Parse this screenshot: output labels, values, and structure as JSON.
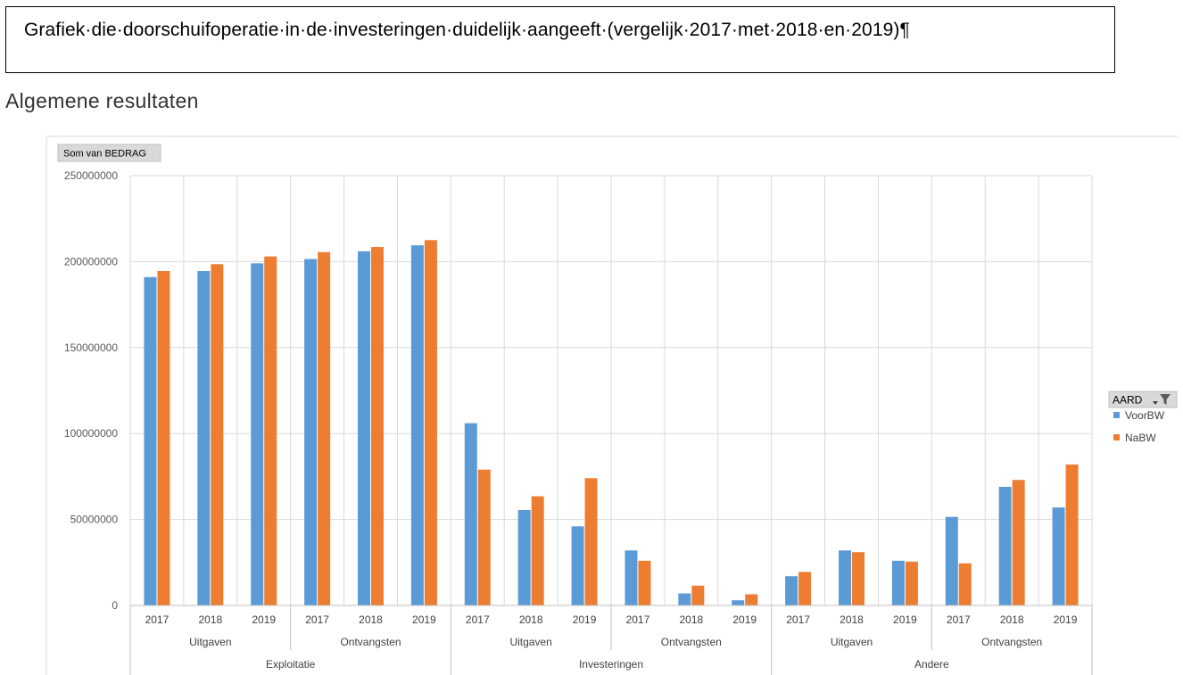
{
  "caption": {
    "text": "Grafiek·die·doorschuifoperatie·in·de·investeringen·duidelijk·aangeeft·(vergelijk·2017·met·2018·en·2019)¶"
  },
  "section_title": "Algemene resultaten",
  "colors": {
    "VoorBW": "#5b9bd5",
    "NaBW": "#ed7d31",
    "grid": "#d9d9d9",
    "axis_text": "#595959",
    "field_button_bg": "#d9d9d9"
  },
  "chart_data": {
    "type": "bar",
    "value_field_label": "Som van BEDRAG",
    "ylim": [
      0,
      250000000
    ],
    "yticks": [
      0,
      50000000,
      100000000,
      150000000,
      200000000,
      250000000
    ],
    "ytick_labels": [
      "0",
      "50000000",
      "100000000",
      "150000000",
      "200000000",
      "250000000"
    ],
    "grid": true,
    "legend": {
      "title": "AARD",
      "placement": "right"
    },
    "category_levels": {
      "year": [
        "2017",
        "2018",
        "2019",
        "2017",
        "2018",
        "2019",
        "2017",
        "2018",
        "2019",
        "2017",
        "2018",
        "2019",
        "2017",
        "2018",
        "2019",
        "2017",
        "2018",
        "2019"
      ],
      "sub": [
        "Uitgaven",
        "Ontvangsten",
        "Uitgaven",
        "Ontvangsten",
        "Uitgaven",
        "Ontvangsten"
      ],
      "group": [
        "Exploitatie",
        "Investeringen",
        "Andere"
      ]
    },
    "series": [
      {
        "name": "VoorBW",
        "values": [
          191000000,
          194500000,
          199000000,
          201500000,
          206000000,
          209500000,
          106000000,
          55500000,
          46000000,
          32000000,
          7000000,
          3000000,
          17000000,
          32000000,
          26000000,
          51500000,
          69000000,
          57000000
        ]
      },
      {
        "name": "NaBW",
        "values": [
          194500000,
          198500000,
          203000000,
          205500000,
          208500000,
          212500000,
          79000000,
          63500000,
          74000000,
          26000000,
          11500000,
          6500000,
          19500000,
          31000000,
          25500000,
          24500000,
          73000000,
          82000000
        ]
      }
    ]
  }
}
